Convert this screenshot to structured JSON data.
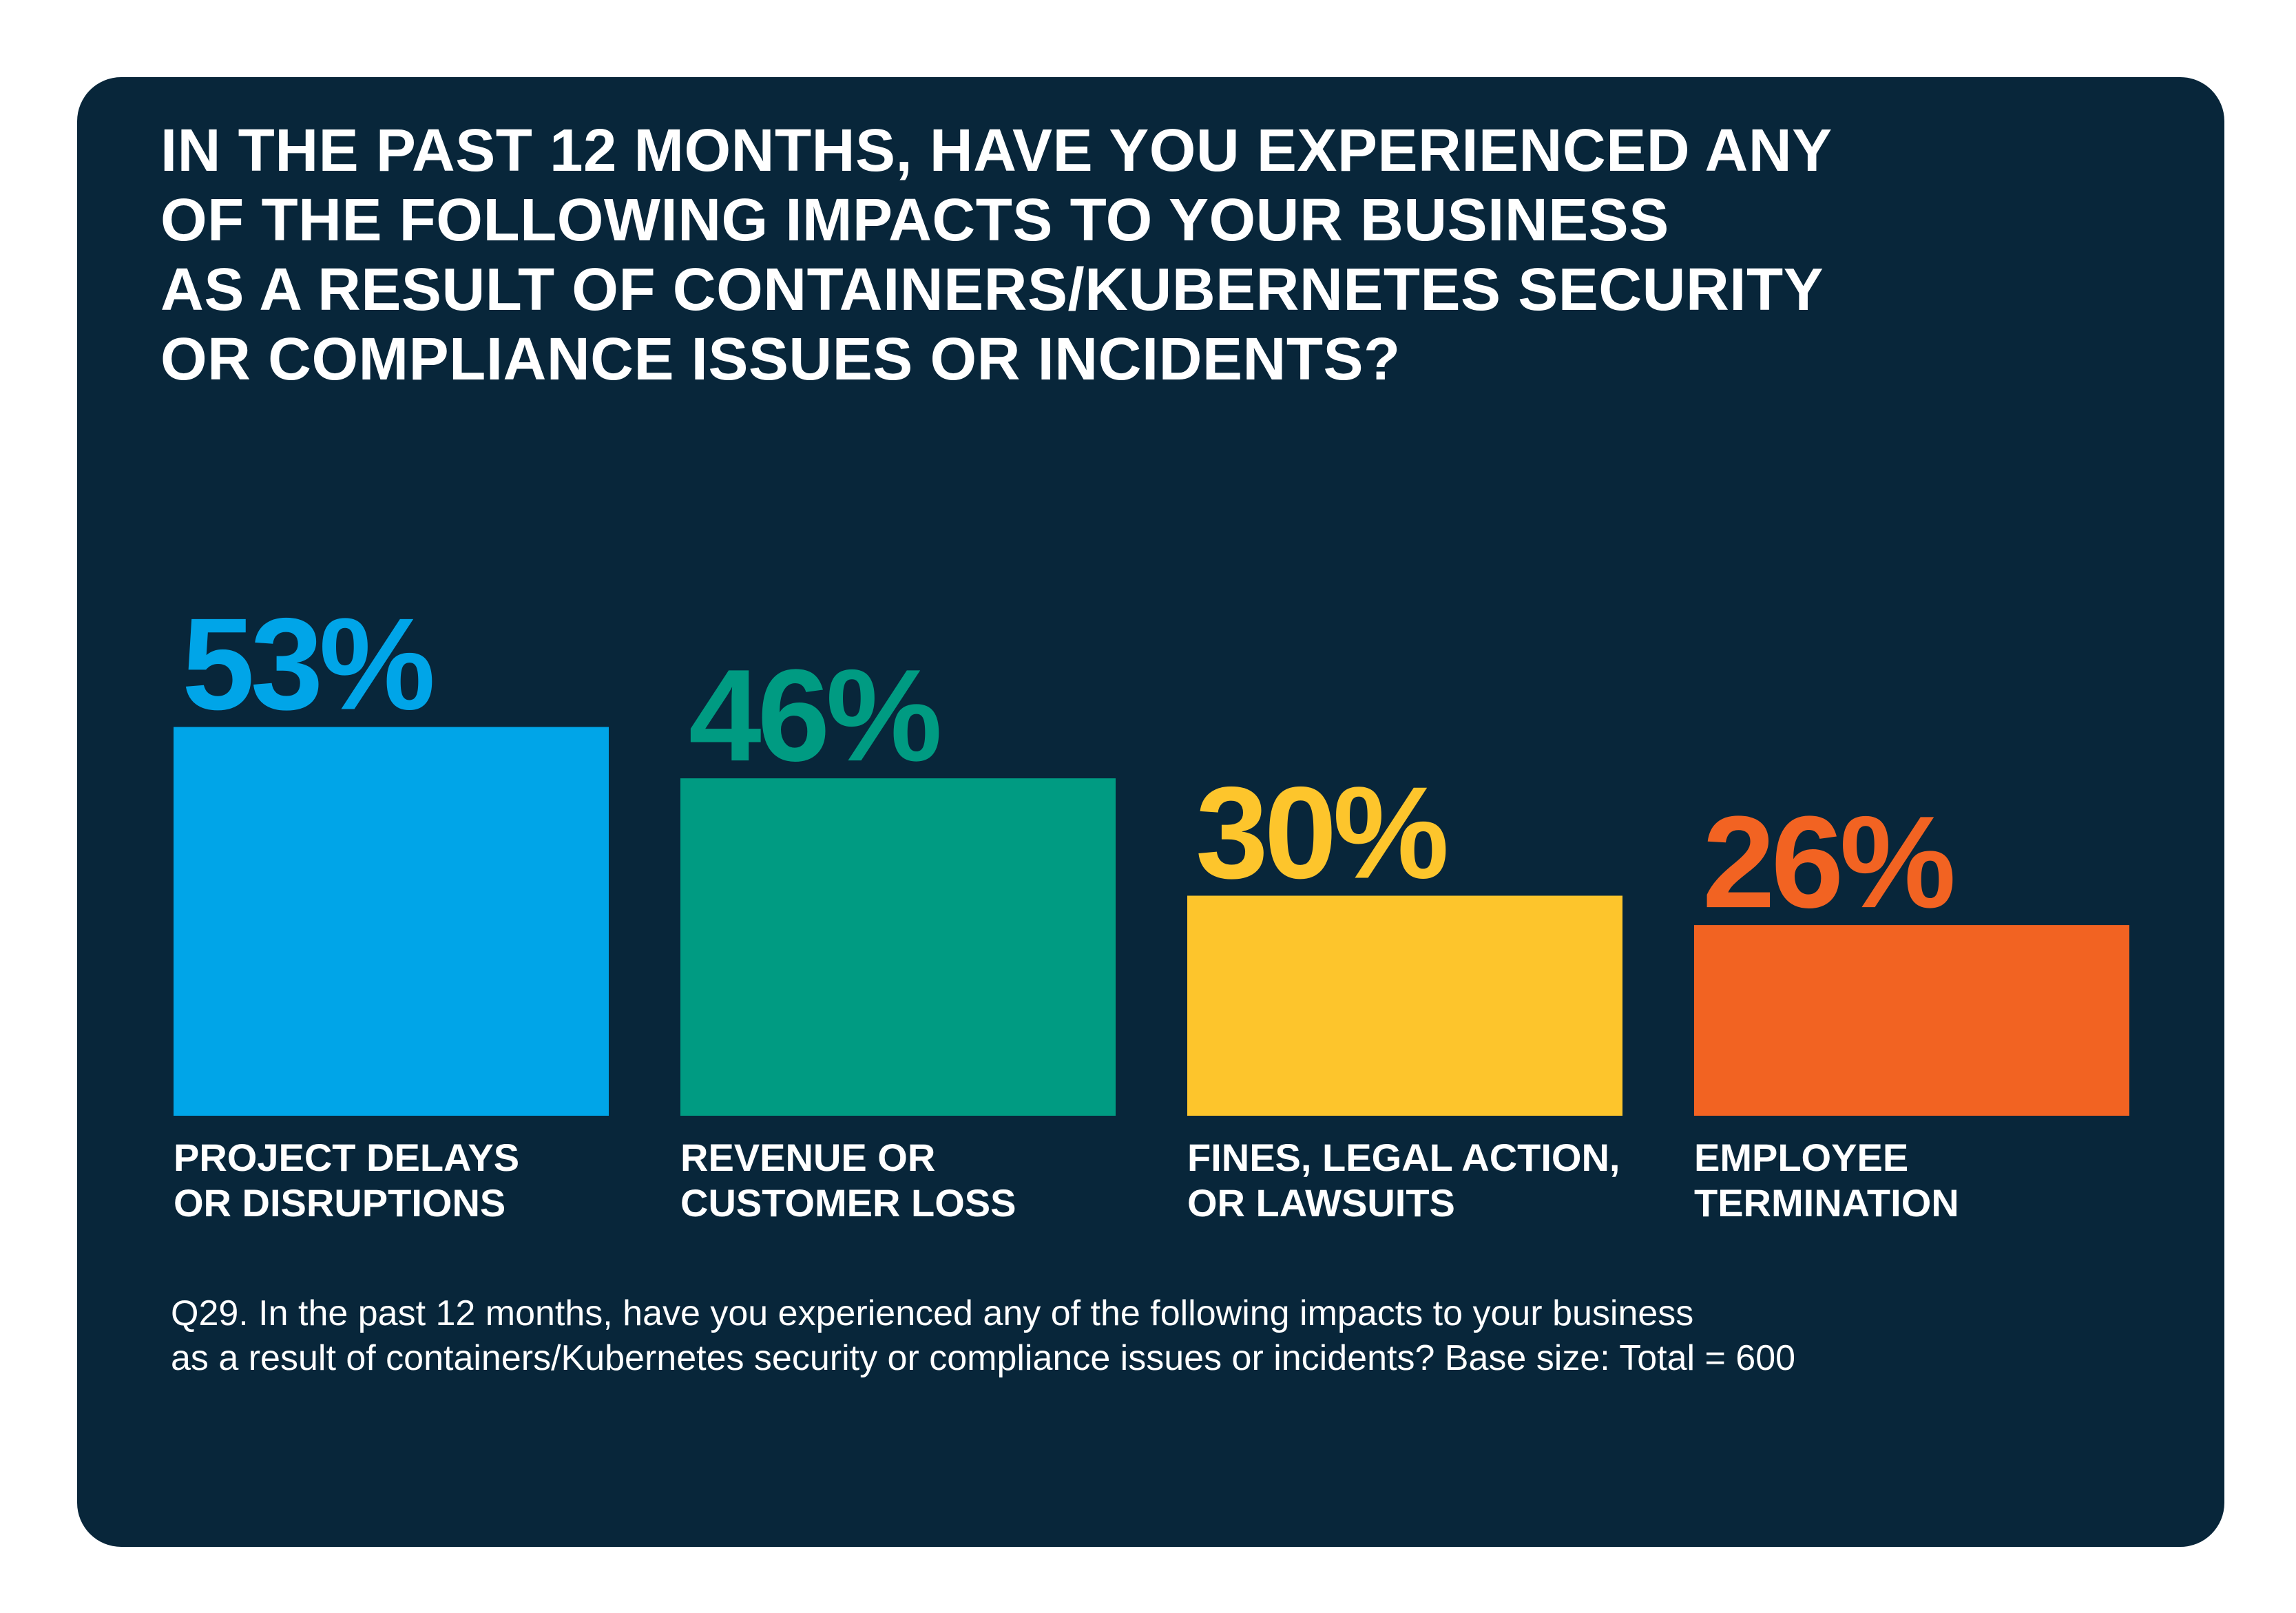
{
  "title_lines": [
    "IN THE PAST 12 MONTHS, HAVE YOU EXPERIENCED ANY",
    "OF THE FOLLOWING IMPACTS TO YOUR BUSINESS",
    "AS A RESULT OF CONTAINERS/KUBERNETES SECURITY",
    "OR COMPLIANCE ISSUES OR INCIDENTS?"
  ],
  "footnote_lines": [
    "Q29. In the past 12 months, have you experienced any of the following impacts to your business",
    "as a result of containers/Kubernetes security or compliance issues or incidents? Base size: Total = 600"
  ],
  "colors": {
    "background": "#08263a",
    "text": "#ffffff"
  },
  "chart_data": {
    "type": "bar",
    "categories": [
      [
        "PROJECT DELAYS",
        "OR DISRUPTIONS"
      ],
      [
        "REVENUE OR",
        "CUSTOMER LOSS"
      ],
      [
        "FINES, LEGAL ACTION,",
        "OR LAWSUITS"
      ],
      [
        "EMPLOYEE",
        "TERMINATION"
      ]
    ],
    "values": [
      53,
      46,
      30,
      26
    ],
    "value_labels": [
      "53%",
      "46%",
      "30%",
      "26%"
    ],
    "bar_colors": [
      "#00a5e8",
      "#009b82",
      "#fdc52c",
      "#f26322"
    ],
    "label_colors": [
      "#00a5e8",
      "#009b82",
      "#fdc52c",
      "#f26322"
    ],
    "unit": "%",
    "axis_visible": false,
    "grid": false
  }
}
